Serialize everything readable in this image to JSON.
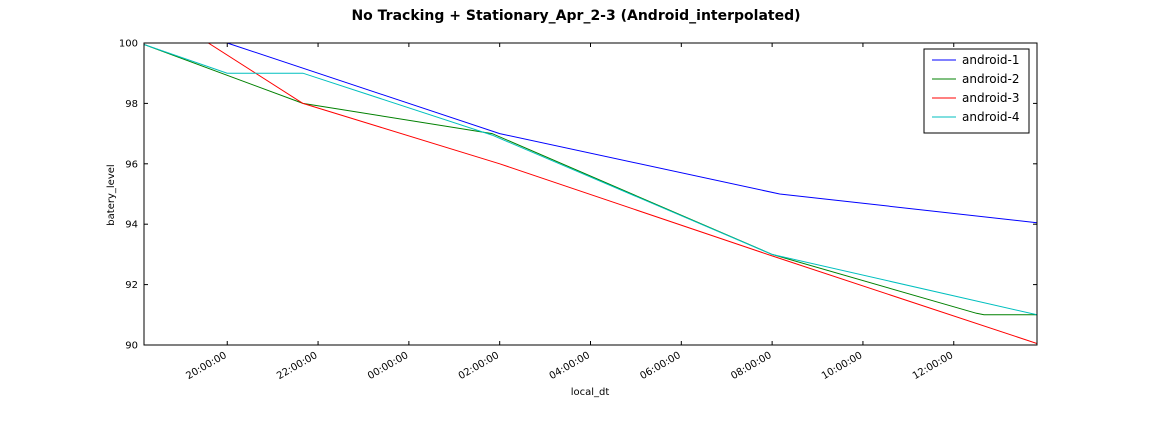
{
  "chart_data": {
    "type": "line",
    "title": "No Tracking + Stationary_Apr_2-3 (Android_interpolated)",
    "xlabel": "local_dt",
    "ylabel": "batery_level",
    "x_axis_type": "time",
    "xlim": [
      "2016-04-02T18:10:00",
      "2016-04-03T13:50:00"
    ],
    "ylim": [
      90,
      100
    ],
    "x_ticks": [
      {
        "value": "2016-04-02T20:00:00",
        "label": "20:00:00"
      },
      {
        "value": "2016-04-02T22:00:00",
        "label": "22:00:00"
      },
      {
        "value": "2016-04-03T00:00:00",
        "label": "00:00:00"
      },
      {
        "value": "2016-04-03T02:00:00",
        "label": "02:00:00"
      },
      {
        "value": "2016-04-03T04:00:00",
        "label": "04:00:00"
      },
      {
        "value": "2016-04-03T06:00:00",
        "label": "06:00:00"
      },
      {
        "value": "2016-04-03T08:00:00",
        "label": "08:00:00"
      },
      {
        "value": "2016-04-03T10:00:00",
        "label": "10:00:00"
      },
      {
        "value": "2016-04-03T12:00:00",
        "label": "12:00:00"
      }
    ],
    "y_ticks": [
      90,
      92,
      94,
      96,
      98,
      100
    ],
    "grid": false,
    "legend_position": "top-right",
    "series": [
      {
        "name": "android-1",
        "color": "#0000ff",
        "points": [
          {
            "x": "2016-04-02T20:00:00",
            "y": 100
          },
          {
            "x": "2016-04-03T02:00:00",
            "y": 97
          },
          {
            "x": "2016-04-03T08:10:00",
            "y": 95
          },
          {
            "x": "2016-04-03T13:50:00",
            "y": 94.05
          }
        ]
      },
      {
        "name": "android-2",
        "color": "#008000",
        "points": [
          {
            "x": "2016-04-02T18:10:00",
            "y": 99.95
          },
          {
            "x": "2016-04-02T21:40:00",
            "y": 98
          },
          {
            "x": "2016-04-03T01:50:00",
            "y": 97
          },
          {
            "x": "2016-04-03T08:00:00",
            "y": 93
          },
          {
            "x": "2016-04-03T12:30:00",
            "y": 91.05
          },
          {
            "x": "2016-04-03T12:40:00",
            "y": 91
          },
          {
            "x": "2016-04-03T13:50:00",
            "y": 91
          }
        ]
      },
      {
        "name": "android-3",
        "color": "#ff0000",
        "points": [
          {
            "x": "2016-04-02T19:35:00",
            "y": 100
          },
          {
            "x": "2016-04-02T21:40:00",
            "y": 98
          },
          {
            "x": "2016-04-03T02:00:00",
            "y": 96
          },
          {
            "x": "2016-04-03T08:00:00",
            "y": 92.95
          },
          {
            "x": "2016-04-03T13:50:00",
            "y": 90.05
          }
        ]
      },
      {
        "name": "android-4",
        "color": "#00bfbf",
        "points": [
          {
            "x": "2016-04-02T18:10:00",
            "y": 99.95
          },
          {
            "x": "2016-04-02T20:00:00",
            "y": 99
          },
          {
            "x": "2016-04-02T21:40:00",
            "y": 99
          },
          {
            "x": "2016-04-03T01:50:00",
            "y": 96.95
          },
          {
            "x": "2016-04-03T08:00:00",
            "y": 93
          },
          {
            "x": "2016-04-03T13:50:00",
            "y": 91
          }
        ]
      }
    ]
  }
}
